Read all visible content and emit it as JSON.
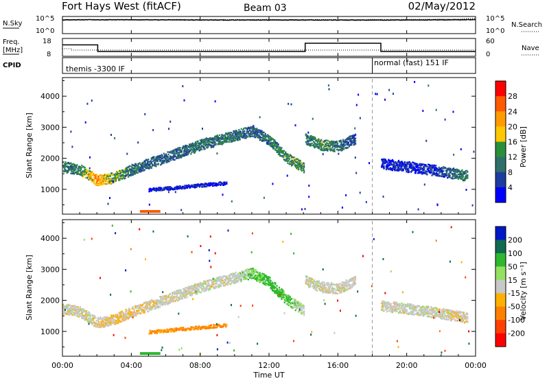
{
  "header": {
    "radar": "Fort Hays West (fitACF)",
    "beam": "Beam 03",
    "date": "02/May/2012"
  },
  "sky_panel": {
    "left_label": "N.Sky",
    "right_label": "N.Search",
    "left_ticks": [
      "10^5",
      "10^0"
    ],
    "right_ticks": [
      "10^5",
      "10^0"
    ]
  },
  "freq_panel": {
    "left_label_1": "Freq.",
    "left_label_2": "[MHz]",
    "right_label": "Nave",
    "left_ticks": [
      "18",
      "8"
    ],
    "right_ticks": [
      "60",
      "0"
    ]
  },
  "cpid_panel": {
    "label": "CPID",
    "segment_1": "themis -3300 IF",
    "segment_2": "normal (fast) 151 IF"
  },
  "time_axis": {
    "label": "Time UT",
    "ticks": [
      "00:00",
      "04:00",
      "08:00",
      "12:00",
      "16:00",
      "20:00",
      "00:00"
    ]
  },
  "power_colorbar": {
    "label": "Power [dB]",
    "ticks": [
      "28",
      "24",
      "20",
      "16",
      "12",
      "8",
      "4"
    ],
    "colors": [
      "#ff0000",
      "#ff5a00",
      "#ff9b00",
      "#ffc800",
      "#2a8f3a",
      "#2f6f6b",
      "#1d3d9e",
      "#0000ff"
    ]
  },
  "velocity_colorbar": {
    "label": "Velocity [m s⁻¹]",
    "ticks": [
      "200",
      "100",
      "50",
      "15",
      "-15",
      "-50",
      "-100",
      "-200"
    ],
    "colors": [
      "#0018c8",
      "#0f6a52",
      "#2db82d",
      "#94e060",
      "#c8c8c8",
      "#ffb000",
      "#ff8000",
      "#ff4000",
      "#ff0000"
    ]
  },
  "chart_data": [
    {
      "type": "line",
      "name": "N.Sky / N.Search",
      "x_range_hours": [
        0,
        24
      ],
      "y_scale": "log",
      "ylim": [
        1,
        100000
      ],
      "series": [
        {
          "name": "N.Sky",
          "style": "solid",
          "x": [
            0,
            2,
            4,
            6,
            8,
            10,
            12,
            14,
            16,
            18,
            20,
            22,
            24
          ],
          "y": [
            20000,
            22000,
            21000,
            20000,
            18000,
            17000,
            18000,
            19000,
            17000,
            16000,
            18000,
            20000,
            24000
          ]
        },
        {
          "name": "N.Search",
          "style": "dotted",
          "x": [
            0,
            4,
            8,
            12,
            16,
            20,
            23,
            24
          ],
          "y": [
            25000,
            25000,
            24000,
            25000,
            24000,
            26000,
            35000,
            60000
          ]
        }
      ]
    },
    {
      "type": "line",
      "name": "Freq / Nave",
      "x_range_hours": [
        0,
        24
      ],
      "ylim_freq": [
        8,
        18
      ],
      "ylim_nave": [
        0,
        60
      ],
      "series": [
        {
          "name": "Freq.",
          "style": "solid",
          "x": [
            0,
            2.05,
            2.05,
            14.1,
            14.1,
            18.5,
            18.5,
            24
          ],
          "y": [
            14.5,
            14.5,
            10.5,
            10.5,
            15.5,
            15.5,
            10.5,
            10.5
          ]
        },
        {
          "name": "Nave",
          "style": "dotted",
          "x": [
            0,
            0.5,
            0.5,
            24
          ],
          "y": [
            25,
            25,
            20,
            20
          ]
        }
      ]
    },
    {
      "type": "heatmap",
      "name": "Power",
      "xlabel": "Time UT",
      "ylabel": "Slant Range [km]",
      "xlim": [
        0,
        24
      ],
      "ylim": [
        200,
        4600
      ],
      "yticks": [
        1000,
        2000,
        3000,
        4000
      ],
      "colorbar_label": "Power [dB]",
      "colorbar_range": [
        0,
        30
      ],
      "structures": [
        {
          "name": "morning echo band",
          "t": [
            0,
            0.5,
            1,
            1.5,
            2,
            3,
            4,
            6,
            8,
            10,
            11,
            12,
            13,
            14
          ],
          "range_km": [
            1750,
            1700,
            1650,
            1500,
            1300,
            1400,
            1650,
            2050,
            2450,
            2750,
            2900,
            2600,
            2050,
            1700
          ],
          "power_db": [
            14,
            12,
            14,
            18,
            22,
            16,
            12,
            10,
            12,
            12,
            10,
            12,
            14,
            14
          ]
        },
        {
          "name": "lower band",
          "t": [
            5,
            6,
            7,
            8,
            9,
            9.5
          ],
          "range_km": [
            1000,
            1050,
            1100,
            1150,
            1200,
            1220
          ],
          "power_db": [
            6,
            6,
            6,
            6,
            6,
            6
          ]
        },
        {
          "name": "afternoon patch",
          "t": [
            14.1,
            15,
            16,
            17
          ],
          "range_km": [
            2650,
            2450,
            2400,
            2650
          ],
          "power_db": [
            12,
            14,
            12,
            8
          ]
        },
        {
          "name": "evening band",
          "t": [
            18.5,
            20,
            22,
            23.5
          ],
          "range_km": [
            1850,
            1750,
            1600,
            1450
          ],
          "power_db": [
            6,
            6,
            8,
            14
          ]
        }
      ]
    },
    {
      "type": "heatmap",
      "name": "Velocity",
      "xlabel": "Time UT",
      "ylabel": "Slant Range [km]",
      "xlim": [
        0,
        24
      ],
      "ylim": [
        200,
        4600
      ],
      "yticks": [
        1000,
        2000,
        3000,
        4000
      ],
      "colorbar_label": "Velocity [m s⁻¹]",
      "colorbar_range": [
        -200,
        200
      ],
      "structures": [
        {
          "name": "morning echo band",
          "t": [
            0,
            1,
            2,
            3,
            4,
            6,
            8,
            10,
            11,
            12,
            13,
            14
          ],
          "range_km": [
            1750,
            1650,
            1300,
            1400,
            1650,
            2050,
            2450,
            2750,
            2900,
            2600,
            2050,
            1700
          ],
          "velocity_ms": [
            0,
            0,
            -5,
            -20,
            -10,
            0,
            0,
            5,
            30,
            50,
            40,
            5
          ]
        },
        {
          "name": "lower band",
          "t": [
            5,
            6,
            7,
            8,
            9,
            9.5
          ],
          "range_km": [
            1000,
            1050,
            1100,
            1150,
            1200,
            1220
          ],
          "velocity_ms": [
            -60,
            -60,
            -60,
            -60,
            -60,
            -60
          ]
        },
        {
          "name": "afternoon patch",
          "t": [
            14.1,
            15,
            16,
            17
          ],
          "range_km": [
            2650,
            2450,
            2400,
            2650
          ],
          "velocity_ms": [
            0,
            0,
            0,
            0
          ]
        },
        {
          "name": "evening band",
          "t": [
            18.5,
            20,
            22,
            23.5
          ],
          "range_km": [
            1850,
            1750,
            1600,
            1450
          ],
          "velocity_ms": [
            0,
            0,
            0,
            -10
          ]
        }
      ]
    }
  ]
}
